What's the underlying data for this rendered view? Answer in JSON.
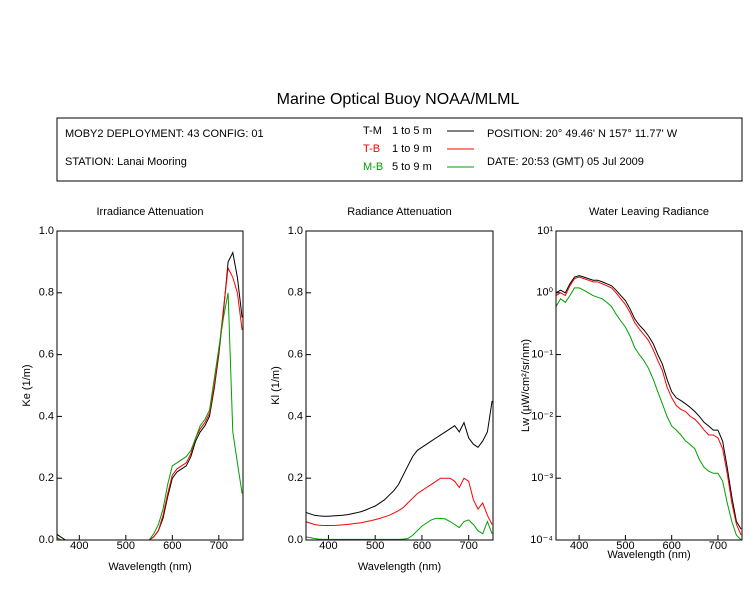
{
  "title": "Marine Optical Buoy NOAA/MLML",
  "info": {
    "deployment": "MOBY2 DEPLOYMENT: 43 CONFIG: 01",
    "station": "STATION: Lanai Mooring",
    "position": "POSITION: 20° 49.46' N   157° 11.77' W",
    "date": "DATE: 20:53 (GMT) 05 Jul 2009"
  },
  "legend": [
    {
      "name": "T-M",
      "depth": "1 to 5  m",
      "color": "#000000"
    },
    {
      "name": "T-B",
      "depth": "1 to 9  m",
      "color": "#ff0000"
    },
    {
      "name": "M-B",
      "depth": "5 to 9  m",
      "color": "#00a000"
    }
  ],
  "chart_data": [
    {
      "type": "line",
      "title": "Irradiance Attenuation",
      "xlabel": "Wavelength (nm)",
      "ylabel": "Ke  (1/m)",
      "log": false,
      "x": [
        350,
        360,
        370,
        380,
        390,
        400,
        410,
        420,
        430,
        440,
        450,
        460,
        470,
        480,
        490,
        500,
        510,
        520,
        530,
        540,
        550,
        560,
        570,
        580,
        590,
        600,
        610,
        620,
        630,
        640,
        650,
        660,
        670,
        680,
        690,
        700,
        710,
        720,
        730,
        740,
        750
      ],
      "xlim": [
        352,
        752
      ],
      "xticks": [
        400,
        500,
        600,
        700
      ],
      "ylim": [
        0,
        1
      ],
      "yticks": [
        {
          "value": 0,
          "label": "0.0"
        },
        {
          "value": 0.2,
          "label": "0.2"
        },
        {
          "value": 0.4,
          "label": "0.4"
        },
        {
          "value": 0.6,
          "label": "0.6"
        },
        {
          "value": 0.8,
          "label": "0.8"
        },
        {
          "value": 1,
          "label": "1.0"
        }
      ],
      "series": [
        {
          "color": "#000000",
          "values": [
            0.02,
            0.01,
            0,
            0,
            0,
            0,
            0,
            0,
            0,
            0,
            0,
            0,
            0,
            0,
            0,
            0,
            0,
            0,
            0,
            0,
            0,
            0.01,
            0.03,
            0.07,
            0.14,
            0.2,
            0.22,
            0.23,
            0.24,
            0.27,
            0.32,
            0.35,
            0.37,
            0.4,
            0.49,
            0.6,
            0.74,
            0.9,
            0.93,
            0.85,
            0.72
          ]
        },
        {
          "color": "#ff0000",
          "values": [
            0.01,
            0,
            0,
            0,
            0,
            0,
            0,
            0,
            0,
            0,
            0,
            0,
            0,
            0,
            0,
            0,
            0,
            0,
            0,
            0,
            0,
            0.01,
            0.03,
            0.08,
            0.15,
            0.21,
            0.23,
            0.24,
            0.25,
            0.28,
            0.33,
            0.36,
            0.38,
            0.41,
            0.5,
            0.61,
            0.75,
            0.88,
            0.85,
            0.8,
            0.68
          ]
        },
        {
          "color": "#00a000",
          "values": [
            0.01,
            0,
            0,
            0,
            0,
            0,
            0,
            0,
            0,
            0,
            0,
            0,
            0,
            0,
            0,
            0,
            0,
            0,
            0,
            0,
            0,
            0.02,
            0.05,
            0.1,
            0.18,
            0.24,
            0.25,
            0.26,
            0.27,
            0.29,
            0.33,
            0.37,
            0.39,
            0.42,
            0.52,
            0.62,
            0.72,
            0.8,
            0.35,
            0.25,
            0.15
          ]
        }
      ]
    },
    {
      "type": "line",
      "title": "Radiance Attenuation",
      "xlabel": "Wavelength (nm)",
      "ylabel": "Kl  (1/m)",
      "log": false,
      "x": [
        350,
        360,
        370,
        380,
        390,
        400,
        410,
        420,
        430,
        440,
        450,
        460,
        470,
        480,
        490,
        500,
        510,
        520,
        530,
        540,
        550,
        560,
        570,
        580,
        590,
        600,
        610,
        620,
        630,
        640,
        650,
        660,
        670,
        680,
        690,
        700,
        710,
        720,
        730,
        740,
        750
      ],
      "xlim": [
        352,
        752
      ],
      "xticks": [
        400,
        500,
        600,
        700
      ],
      "ylim": [
        0,
        1
      ],
      "yticks": [
        {
          "value": 0,
          "label": "0.0"
        },
        {
          "value": 0.2,
          "label": "0.2"
        },
        {
          "value": 0.4,
          "label": "0.4"
        },
        {
          "value": 0.6,
          "label": "0.6"
        },
        {
          "value": 0.8,
          "label": "0.8"
        },
        {
          "value": 1,
          "label": "1.0"
        }
      ],
      "series": [
        {
          "color": "#000000",
          "values": [
            0.09,
            0.085,
            0.08,
            0.078,
            0.077,
            0.077,
            0.078,
            0.079,
            0.08,
            0.082,
            0.085,
            0.088,
            0.092,
            0.097,
            0.104,
            0.11,
            0.12,
            0.13,
            0.145,
            0.16,
            0.18,
            0.21,
            0.24,
            0.27,
            0.29,
            0.3,
            0.31,
            0.32,
            0.33,
            0.34,
            0.35,
            0.36,
            0.37,
            0.35,
            0.38,
            0.33,
            0.31,
            0.3,
            0.32,
            0.35,
            0.45
          ]
        },
        {
          "color": "#ff0000",
          "values": [
            0.06,
            0.055,
            0.05,
            0.048,
            0.047,
            0.047,
            0.047,
            0.048,
            0.049,
            0.05,
            0.052,
            0.054,
            0.056,
            0.059,
            0.062,
            0.066,
            0.07,
            0.075,
            0.08,
            0.087,
            0.095,
            0.105,
            0.12,
            0.135,
            0.15,
            0.16,
            0.17,
            0.18,
            0.19,
            0.2,
            0.2,
            0.2,
            0.19,
            0.17,
            0.2,
            0.19,
            0.13,
            0.1,
            0.12,
            0.08,
            0.05
          ]
        },
        {
          "color": "#00a000",
          "values": [
            0.01,
            0.008,
            0.005,
            0.003,
            0.002,
            0.002,
            0.002,
            0.002,
            0.002,
            0.002,
            0.002,
            0.002,
            0.002,
            0.002,
            0.002,
            0.002,
            0.002,
            0.002,
            0.002,
            0.002,
            0.002,
            0.003,
            0.005,
            0.015,
            0.03,
            0.045,
            0.055,
            0.065,
            0.07,
            0.07,
            0.068,
            0.06,
            0.05,
            0.04,
            0.06,
            0.065,
            0.05,
            0.03,
            0.02,
            0.06,
            0.02
          ]
        }
      ]
    },
    {
      "type": "line",
      "title": "Water Leaving Radiance",
      "xlabel": "Wavelength (nm)",
      "ylabel": "Lw  (µW/cm²/sr/nm)",
      "log": true,
      "x": [
        350,
        360,
        370,
        380,
        390,
        400,
        410,
        420,
        430,
        440,
        450,
        460,
        470,
        480,
        490,
        500,
        510,
        520,
        530,
        540,
        550,
        560,
        570,
        580,
        590,
        600,
        610,
        620,
        630,
        640,
        650,
        660,
        670,
        680,
        690,
        700,
        710,
        720,
        730,
        740,
        750
      ],
      "xlim": [
        350,
        752
      ],
      "xticks": [
        400,
        500,
        600,
        700
      ],
      "ylim": [
        0.0001,
        10
      ],
      "yticks": [
        {
          "value": 0.0001,
          "label": "10⁻⁴"
        },
        {
          "value": 0.001,
          "label": "10⁻³"
        },
        {
          "value": 0.01,
          "label": "10⁻²"
        },
        {
          "value": 0.1,
          "label": "10⁻¹"
        },
        {
          "value": 1,
          "label": "10⁰"
        },
        {
          "value": 10,
          "label": "10¹"
        }
      ],
      "series": [
        {
          "color": "#000000",
          "values": [
            1.0,
            1.1,
            1.0,
            1.4,
            1.8,
            1.9,
            1.8,
            1.7,
            1.6,
            1.6,
            1.5,
            1.4,
            1.3,
            1.1,
            0.9,
            0.75,
            0.55,
            0.38,
            0.3,
            0.25,
            0.2,
            0.15,
            0.1,
            0.07,
            0.04,
            0.025,
            0.02,
            0.018,
            0.016,
            0.014,
            0.012,
            0.01,
            0.008,
            0.007,
            0.006,
            0.006,
            0.004,
            0.0015,
            0.0005,
            0.0002,
            0.00015
          ]
        },
        {
          "color": "#ff0000",
          "values": [
            0.9,
            1.0,
            0.9,
            1.3,
            1.7,
            1.8,
            1.7,
            1.6,
            1.5,
            1.5,
            1.4,
            1.3,
            1.2,
            1.0,
            0.8,
            0.65,
            0.48,
            0.33,
            0.26,
            0.21,
            0.17,
            0.12,
            0.08,
            0.055,
            0.03,
            0.02,
            0.015,
            0.013,
            0.012,
            0.01,
            0.009,
            0.0075,
            0.006,
            0.005,
            0.005,
            0.0045,
            0.003,
            0.0012,
            0.0004,
            0.00018,
            0.00012
          ]
        },
        {
          "color": "#00a000",
          "values": [
            0.6,
            0.8,
            0.7,
            0.9,
            1.2,
            1.2,
            1.1,
            1.0,
            0.9,
            0.85,
            0.8,
            0.7,
            0.6,
            0.45,
            0.35,
            0.28,
            0.2,
            0.13,
            0.1,
            0.08,
            0.06,
            0.04,
            0.025,
            0.016,
            0.01,
            0.007,
            0.006,
            0.005,
            0.004,
            0.0035,
            0.003,
            0.002,
            0.0015,
            0.0013,
            0.0012,
            0.0012,
            0.0009,
            0.0004,
            0.0002,
            0.00012,
            0.0001
          ]
        }
      ]
    }
  ]
}
